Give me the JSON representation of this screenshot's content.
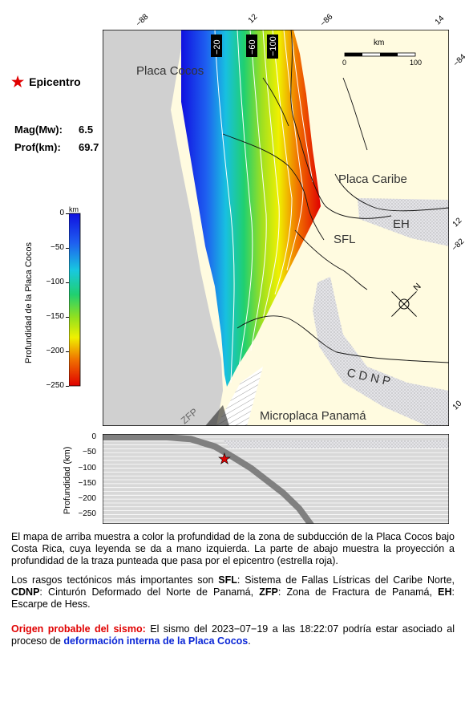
{
  "legend": {
    "epicenter_label": "Epicentro"
  },
  "params": [
    {
      "label": "Mag(Mw):",
      "value": "6.5"
    },
    {
      "label": "Prof(km):",
      "value": "69.7"
    }
  ],
  "colorbar": {
    "unit": "km",
    "title": "Profundidad de la Placa Cocos",
    "ticks": [
      "0",
      "−50",
      "−100",
      "−150",
      "−200",
      "−250"
    ],
    "range": [
      0,
      -250
    ]
  },
  "map": {
    "labels": {
      "cocos": "Placa Cocos",
      "caribe": "Placa Caribe",
      "sfl": "SFL",
      "eh": "EH",
      "cdnp": "C D N P",
      "zfp": "ZFP",
      "panama": "Microplaca Panamá"
    },
    "contour_labels": [
      "−20",
      "−60",
      "−100"
    ],
    "scalebar": {
      "unit": "km",
      "min": "0",
      "max": "100"
    },
    "north": "N",
    "frame_ticks": [
      "−88",
      "12",
      "−86",
      "14",
      "−84",
      "12",
      "−82",
      "10"
    ]
  },
  "profile": {
    "ylabel": "Profundidad (km)",
    "yticks": [
      "0",
      "−50",
      "−100",
      "−150",
      "−200",
      "−250"
    ],
    "ylim": [
      0,
      -280
    ],
    "epicenter_depth": -69.7
  },
  "text": {
    "p1": "El mapa de arriba muestra a color la profundidad de la zona de subducción de la Placa Cocos bajo Costa Rica, cuya leyenda se da a mano izquierda.  La parte de abajo muestra la proyección a profundidad de la traza punteada que pasa por el epicentro (estrella roja).",
    "p2_intro": "Los rasgos tectónicos más importantes son ",
    "p2_sfl": "SFL",
    "p2_sfl_desc": ": Sistema de Fallas Lístricas del Caribe Norte, ",
    "p2_cdnp": "CDNP",
    "p2_cdnp_desc": ": Cinturón Deformado del Norte de Panamá, ",
    "p2_zfp": "ZFP",
    "p2_zfp_desc": ": Zona de Fractura de Panamá, ",
    "p2_eh": "EH",
    "p2_eh_desc": ": Escarpe de Hess.",
    "p3_head": "Origen probable del sismo:",
    "p3_body": " El sismo del 2023−07−19 a las 18:22:07 podría estar asociado al proceso de ",
    "p3_cause": "deformación interna de la Placa Cocos",
    "p3_end": "."
  },
  "colors": {
    "land": "#fffbe0",
    "ocean": "#d0d0d0",
    "star": "#e00000",
    "slab_line": "#808080"
  }
}
